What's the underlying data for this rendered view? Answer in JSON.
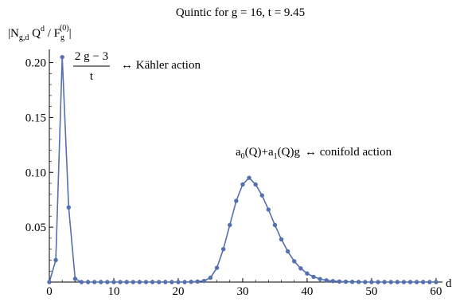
{
  "chart_data": {
    "type": "line",
    "title": "Quintic for g = 16, t = 9.45",
    "xlabel": "d",
    "ylabel": {
      "main": "|N",
      "sub": "g,d",
      "q": " Q",
      "qsup": "d",
      "slash": " / F",
      "fsub": "g",
      "fsup": "(0)",
      "close": "|"
    },
    "xlim": [
      0,
      61
    ],
    "ylim": [
      0,
      0.212
    ],
    "xticks": [
      0,
      10,
      20,
      30,
      40,
      50,
      60
    ],
    "yticks": [
      0.05,
      0.1,
      0.15,
      0.2
    ],
    "ytick_labels": [
      "0.05",
      "0.10",
      "0.15",
      "0.20"
    ],
    "color": "#5470b0",
    "series": [
      {
        "x": [
          0,
          1,
          2,
          3,
          4,
          5,
          6,
          7,
          8,
          9,
          10,
          11,
          12,
          13,
          14,
          15,
          16,
          17,
          18,
          19,
          20,
          21,
          22,
          23,
          24,
          25,
          26,
          27,
          28,
          29,
          30,
          31,
          32,
          33,
          34,
          35,
          36,
          37,
          38,
          39,
          40,
          41,
          42,
          43,
          44,
          45,
          46,
          47,
          48,
          49,
          50,
          51,
          52,
          53,
          54,
          55,
          56,
          57,
          58,
          59,
          60
        ],
        "y": [
          0,
          0.02,
          0.205,
          0.068,
          0.003,
          0,
          0,
          0,
          0,
          0,
          0,
          0,
          0,
          0,
          0,
          0,
          0,
          0,
          0,
          0,
          0,
          0,
          0.0002,
          0.0005,
          0.001,
          0.004,
          0.013,
          0.03,
          0.052,
          0.074,
          0.089,
          0.095,
          0.089,
          0.079,
          0.066,
          0.052,
          0.039,
          0.028,
          0.019,
          0.0125,
          0.0078,
          0.0048,
          0.0028,
          0.0016,
          0.0009,
          0.0005,
          0.0003,
          0.0002,
          0.0001,
          0,
          0,
          0,
          0,
          0,
          0,
          0,
          0,
          0,
          0,
          0,
          0
        ]
      }
    ],
    "annotations": [
      {
        "numerator": "2 g − 3",
        "denominator": "t",
        "rest": "↔ Kähler action"
      },
      {
        "a0": "a",
        "a0sub": "0",
        "a0rest": "(Q)+a",
        "a1sub": "1",
        "a1rest": "(Q)g",
        "rest": "↔ conifold action"
      }
    ]
  }
}
